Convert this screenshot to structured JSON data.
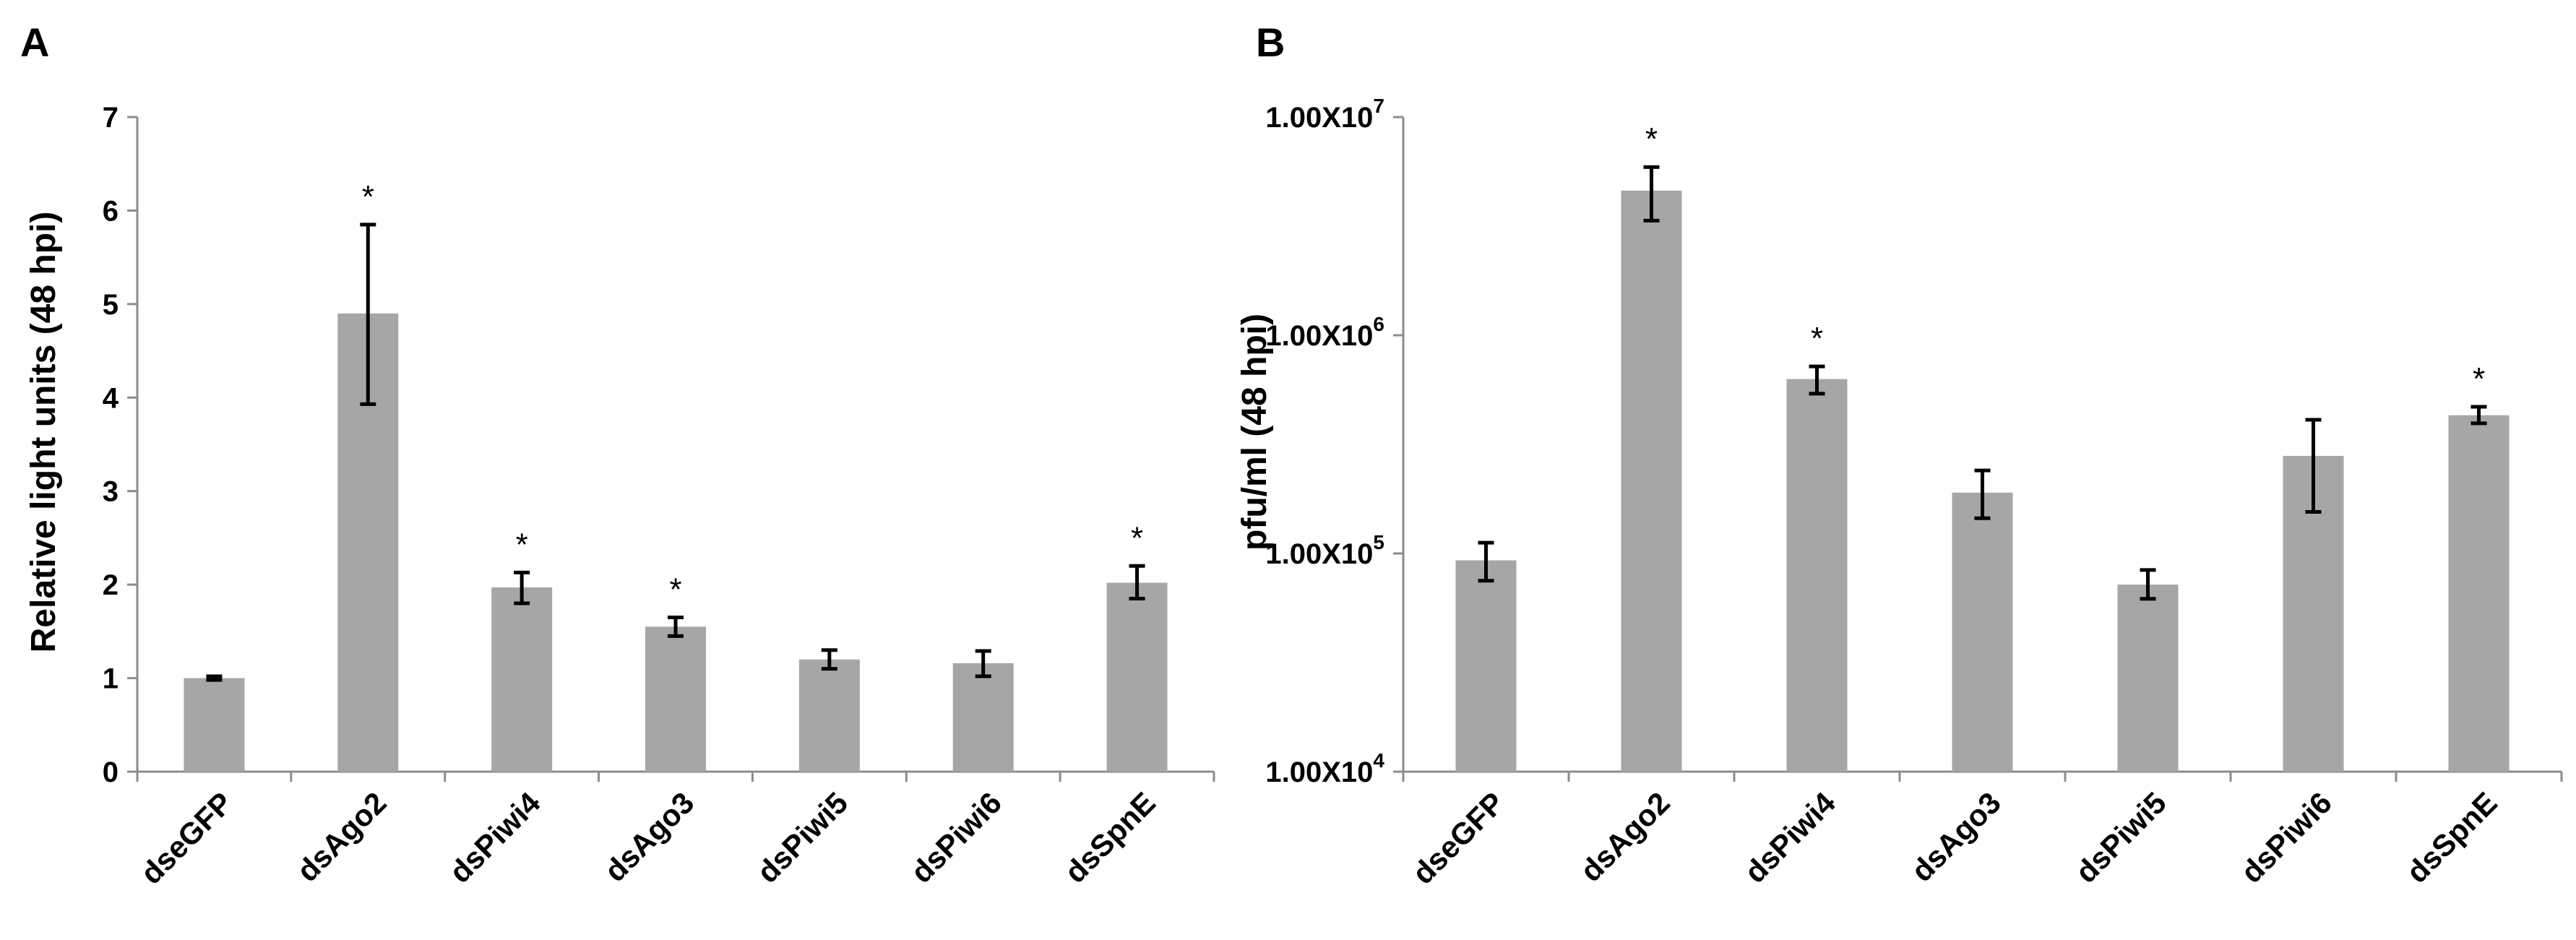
{
  "colors": {
    "bar": "#a6a6a6",
    "error_bar": "#000000",
    "axis": "#8c8c8c"
  },
  "chart_data": [
    {
      "panel_label": "A",
      "type": "bar",
      "categories": [
        "dseGFP",
        "dsAgo2",
        "dsPiwi4",
        "dsAgo3",
        "dsPiwi5",
        "dsPiwi6",
        "dsSpnE"
      ],
      "values": [
        1.0,
        4.9,
        1.97,
        1.55,
        1.2,
        1.16,
        2.02
      ],
      "error_low": [
        0.98,
        3.93,
        1.8,
        1.45,
        1.1,
        1.02,
        1.85
      ],
      "error_high": [
        1.02,
        5.85,
        2.13,
        1.65,
        1.3,
        1.29,
        2.2
      ],
      "significance": [
        "",
        "*",
        "*",
        "*",
        "",
        "",
        "*"
      ],
      "title": "",
      "xlabel": "",
      "ylabel": "Relative light units (48 hpi)",
      "ylim": [
        0,
        7
      ],
      "yscale": "linear",
      "yticks": [
        0,
        1,
        2,
        3,
        4,
        5,
        6,
        7
      ],
      "ytick_labels": [
        "0",
        "1",
        "2",
        "3",
        "4",
        "5",
        "6",
        "7"
      ],
      "grid": false,
      "legend": "none"
    },
    {
      "panel_label": "B",
      "type": "bar",
      "categories": [
        "dseGFP",
        "dsAgo2",
        "dsPiwi4",
        "dsAgo3",
        "dsPiwi5",
        "dsPiwi6",
        "dsSpnE"
      ],
      "values": [
        93000,
        4600000,
        630000,
        190000,
        72000,
        280000,
        430000
      ],
      "error_low": [
        75000,
        3350000,
        540000,
        145000,
        62000,
        155000,
        395000
      ],
      "error_high": [
        112000,
        5900000,
        720000,
        240000,
        84000,
        410000,
        470000
      ],
      "significance": [
        "",
        "*",
        "*",
        "",
        "",
        "",
        "*"
      ],
      "title": "",
      "xlabel": "",
      "ylabel": "pfu/ml (48 hpi)",
      "ylim": [
        10000,
        10000000
      ],
      "yscale": "log",
      "yticks": [
        10000,
        100000,
        1000000,
        10000000
      ],
      "ytick_labels": [
        {
          "base": "1.00X10",
          "exp": "4"
        },
        {
          "base": "1.00X10",
          "exp": "5"
        },
        {
          "base": "1.00X10",
          "exp": "6"
        },
        {
          "base": "1.00X10",
          "exp": "7"
        }
      ],
      "grid": false,
      "legend": "none"
    }
  ]
}
